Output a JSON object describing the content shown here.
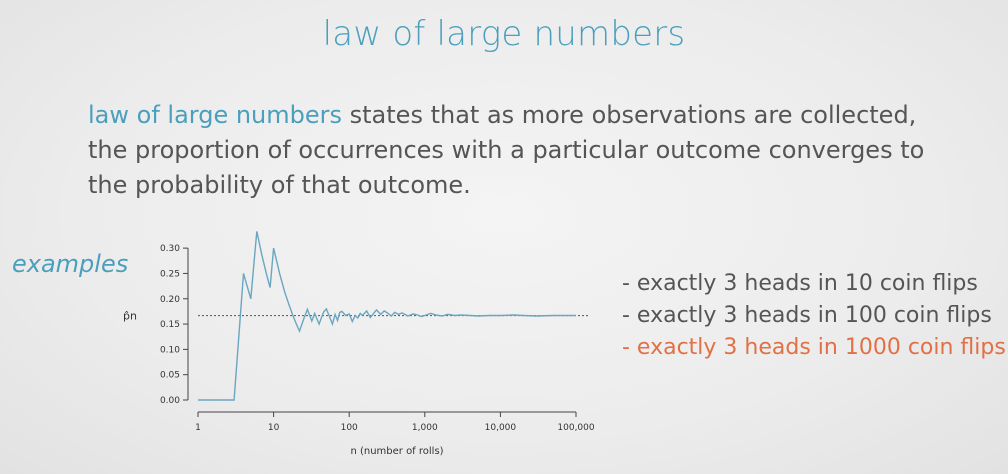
{
  "slide": {
    "title": "law of large numbers",
    "definition_term": "law of large numbers",
    "definition_rest": " states that as more observations are collected, the proportion of occurrences with a particular outcome converges to the probability of that outcome.",
    "examples_label": "examples"
  },
  "examples": [
    {
      "text": "- exactly 3 heads in 10 coin flips",
      "highlighted": false
    },
    {
      "text": "- exactly 3 heads in 100 coin flips",
      "highlighted": false
    },
    {
      "text": "- exactly 3 heads in 1000 coin flips",
      "highlighted": true
    }
  ],
  "colors": {
    "accent": "#4a9fbd",
    "highlight": "#e27045",
    "text": "#555555",
    "line": "#6aa6c0"
  },
  "chart_data": {
    "type": "line",
    "xlabel": "n (number of rolls)",
    "ylabel": "p̂n",
    "x_scale": "log",
    "xlim": [
      1,
      100000
    ],
    "ylim": [
      0,
      0.32
    ],
    "x_ticks": [
      1,
      10,
      100,
      1000,
      10000,
      100000
    ],
    "x_tick_labels": [
      "1",
      "10",
      "100",
      "1,000",
      "10,000",
      "100,000"
    ],
    "y_ticks": [
      0,
      0.05,
      0.1,
      0.15,
      0.2,
      0.25,
      0.3
    ],
    "y_tick_labels": [
      "0.00",
      "0.05",
      "0.10",
      "0.15",
      "0.20",
      "0.25",
      "0.30"
    ],
    "reference_line": 0.1667,
    "grid": false,
    "series": [
      {
        "x": [
          1,
          2,
          3,
          4,
          5,
          6,
          7,
          8,
          9,
          10,
          12,
          14,
          16,
          18,
          20,
          22,
          25,
          28,
          30,
          32,
          35,
          38,
          40,
          43,
          46,
          50,
          55,
          60,
          65,
          70,
          75,
          80,
          90,
          100,
          110,
          120,
          130,
          140,
          150,
          170,
          190,
          210,
          230,
          260,
          290,
          320,
          360,
          400,
          450,
          500,
          600,
          700,
          800,
          900,
          1000,
          1200,
          1400,
          1700,
          2000,
          2500,
          3000,
          4000,
          5000,
          7000,
          10000,
          15000,
          20000,
          30000,
          50000,
          70000,
          100000
        ],
        "y": [
          0,
          0,
          0,
          0.25,
          0.2,
          0.333,
          0.286,
          0.25,
          0.222,
          0.3,
          0.25,
          0.214,
          0.188,
          0.167,
          0.15,
          0.136,
          0.16,
          0.179,
          0.167,
          0.156,
          0.171,
          0.158,
          0.15,
          0.163,
          0.174,
          0.18,
          0.164,
          0.15,
          0.169,
          0.157,
          0.173,
          0.175,
          0.167,
          0.17,
          0.155,
          0.167,
          0.162,
          0.171,
          0.167,
          0.176,
          0.163,
          0.171,
          0.178,
          0.169,
          0.176,
          0.172,
          0.166,
          0.173,
          0.169,
          0.172,
          0.166,
          0.17,
          0.168,
          0.165,
          0.167,
          0.171,
          0.168,
          0.166,
          0.169,
          0.167,
          0.168,
          0.167,
          0.166,
          0.167,
          0.167,
          0.168,
          0.167,
          0.166,
          0.167,
          0.167,
          0.167
        ]
      }
    ]
  }
}
